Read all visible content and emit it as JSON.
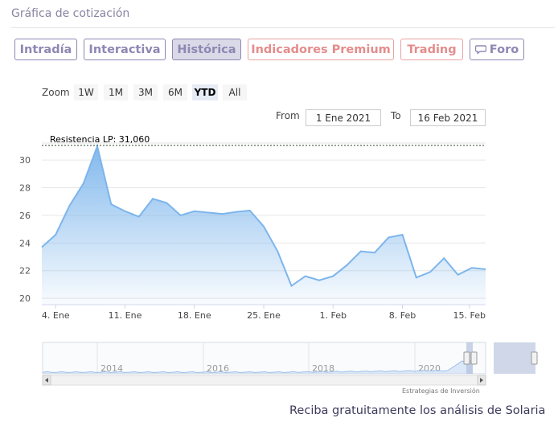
{
  "header": {
    "title": "Gráfica de cotización"
  },
  "tabs": [
    {
      "label": "Intradía",
      "style": "purple"
    },
    {
      "label": "Interactiva",
      "style": "purple"
    },
    {
      "label": "Histórica",
      "style": "purple",
      "active": true
    },
    {
      "label": "Indicadores Premium",
      "style": "pink"
    },
    {
      "label": "Trading",
      "style": "pink"
    },
    {
      "label": "Foro",
      "style": "purple",
      "icon": "speech-bubble-icon"
    }
  ],
  "zoom": {
    "label": "Zoom",
    "options": [
      "1W",
      "1M",
      "3M",
      "6M",
      "YTD",
      "All"
    ],
    "selected": "YTD"
  },
  "range": {
    "from_label": "From",
    "from_value": "1 Ene 2021",
    "to_label": "To",
    "to_value": "16 Feb 2021"
  },
  "chart_data": {
    "type": "area",
    "x_label_ticks": [
      "4. Ene",
      "11. Ene",
      "18. Ene",
      "25. Ene",
      "1. Feb",
      "8. Feb",
      "15. Feb"
    ],
    "y_ticks": [
      20,
      22,
      24,
      26,
      28,
      30
    ],
    "ylim": [
      19.6,
      31.4
    ],
    "annotation": {
      "label": "Resistencia LP: 31,060",
      "value": 31.06
    },
    "series": [
      {
        "values": [
          23.7,
          24.6,
          26.7,
          28.3,
          31.0,
          26.8,
          26.3,
          25.9,
          27.2,
          26.9,
          26.0,
          26.3,
          26.2,
          26.1,
          26.25,
          26.35,
          25.2,
          23.4,
          20.9,
          21.6,
          21.3,
          21.6,
          22.4,
          23.4,
          23.3,
          24.4,
          24.6,
          21.5,
          21.9,
          22.9,
          21.7,
          22.2,
          22.1
        ],
        "color": "#7cb5ec"
      }
    ],
    "grid": true,
    "navigator": {
      "year_labels": [
        "2014",
        "2016",
        "2018",
        "2020"
      ]
    }
  },
  "footer": {
    "credits": "Estrategias de Inversión",
    "promo": "Reciba gratuitamente los análisis de Solaria"
  }
}
